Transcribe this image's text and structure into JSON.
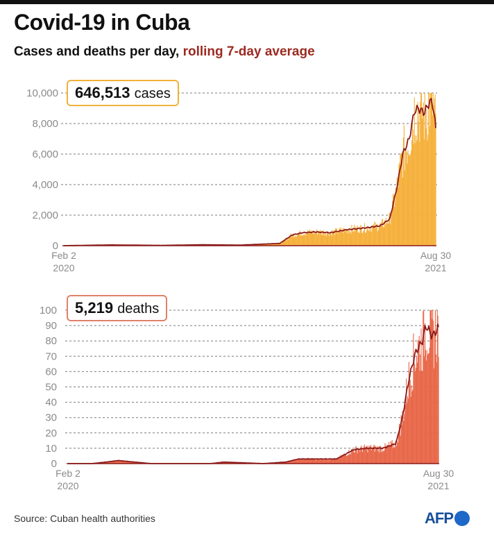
{
  "title": "Covid-19 in Cuba",
  "subtitle_main": "Cases and deaths per day, ",
  "subtitle_avg": "rolling 7-day average",
  "source": "Source: Cuban health authorities",
  "logo": "AFP",
  "colors": {
    "cases_bar": "#f5b13d",
    "cases_box_border": "#f0b13a",
    "deaths_bar": "#e8684a",
    "deaths_box_border": "#e0816a",
    "avg_line": "#8b1a1a",
    "grid": "#7a7a7a",
    "logo": "#1d68c8"
  },
  "cases": {
    "total_value": "646,513",
    "total_unit": "cases",
    "start_label": [
      "Feb 2",
      "2020"
    ],
    "end_label": [
      "Aug 30",
      "2021"
    ]
  },
  "deaths": {
    "total_value": "5,219",
    "total_unit": "deaths",
    "start_label": [
      "Feb 2",
      "2020"
    ],
    "end_label": [
      "Aug 30",
      "2021"
    ]
  },
  "chart_data": [
    {
      "type": "bar",
      "title": "",
      "series_label": "cases per day",
      "x_start": "2020-02-02",
      "x_end": "2021-08-30",
      "ylim": [
        0,
        10000
      ],
      "yticks": [
        0,
        2000,
        4000,
        6000,
        8000,
        10000
      ],
      "ytick_labels": [
        "0",
        "2,000",
        "4,000",
        "6,000",
        "8,000",
        "10,000"
      ],
      "grid": true,
      "rolling_average_points": [
        [
          "2020-02-02",
          0
        ],
        [
          "2020-04-15",
          50
        ],
        [
          "2020-07-01",
          20
        ],
        [
          "2020-09-01",
          60
        ],
        [
          "2020-11-01",
          40
        ],
        [
          "2021-01-01",
          150
        ],
        [
          "2021-01-20",
          700
        ],
        [
          "2021-02-05",
          850
        ],
        [
          "2021-02-25",
          900
        ],
        [
          "2021-03-20",
          850
        ],
        [
          "2021-04-15",
          1050
        ],
        [
          "2021-05-10",
          1150
        ],
        [
          "2021-06-05",
          1300
        ],
        [
          "2021-06-20",
          1750
        ],
        [
          "2021-07-01",
          3800
        ],
        [
          "2021-07-10",
          6000
        ],
        [
          "2021-07-20",
          7000
        ],
        [
          "2021-07-28",
          8800
        ],
        [
          "2021-08-03",
          9000
        ],
        [
          "2021-08-12",
          8700
        ],
        [
          "2021-08-22",
          9500
        ],
        [
          "2021-08-26",
          9200
        ],
        [
          "2021-08-30",
          7700
        ]
      ]
    },
    {
      "type": "bar",
      "title": "",
      "series_label": "deaths per day",
      "x_start": "2020-02-02",
      "x_end": "2021-08-30",
      "ylim": [
        0,
        100
      ],
      "yticks": [
        0,
        10,
        20,
        30,
        40,
        50,
        60,
        70,
        80,
        90,
        100
      ],
      "ytick_labels": [
        "0",
        "10",
        "20",
        "30",
        "40",
        "50",
        "60",
        "70",
        "80",
        "90",
        "100"
      ],
      "grid": true,
      "rolling_average_points": [
        [
          "2020-02-02",
          0
        ],
        [
          "2020-03-10",
          0
        ],
        [
          "2020-04-01",
          1
        ],
        [
          "2020-04-20",
          2
        ],
        [
          "2020-05-15",
          1
        ],
        [
          "2020-06-10",
          0
        ],
        [
          "2020-09-10",
          0
        ],
        [
          "2020-10-01",
          1
        ],
        [
          "2020-12-01",
          0
        ],
        [
          "2021-01-05",
          1
        ],
        [
          "2021-01-25",
          3
        ],
        [
          "2021-02-20",
          3
        ],
        [
          "2021-03-25",
          3
        ],
        [
          "2021-04-20",
          9
        ],
        [
          "2021-05-10",
          10
        ],
        [
          "2021-06-05",
          10
        ],
        [
          "2021-06-25",
          13
        ],
        [
          "2021-07-05",
          30
        ],
        [
          "2021-07-15",
          55
        ],
        [
          "2021-07-25",
          72
        ],
        [
          "2021-08-05",
          80
        ],
        [
          "2021-08-10",
          90
        ],
        [
          "2021-08-15",
          87
        ],
        [
          "2021-08-20",
          83
        ],
        [
          "2021-08-26",
          86
        ],
        [
          "2021-08-30",
          89
        ]
      ]
    }
  ]
}
